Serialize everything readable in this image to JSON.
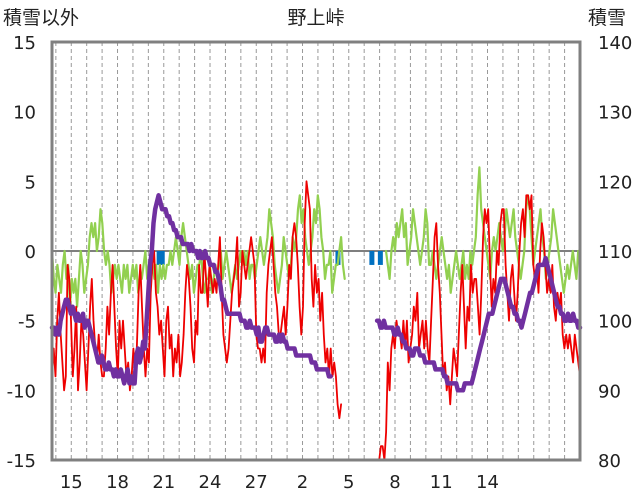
{
  "chart_data": {
    "type": "line",
    "title": "野上峠",
    "left_axis_label": "積雪以外",
    "right_axis_label": "積雪",
    "left_ylim": [
      -15,
      15
    ],
    "left_ticks": [
      "15",
      "10",
      "5",
      "0",
      "-5",
      "-10",
      "-15"
    ],
    "right_ylim": [
      80,
      140
    ],
    "right_ticks": [
      "140",
      "130",
      "120",
      "110",
      "100",
      "90",
      "80"
    ],
    "x_tick_labels": [
      "15",
      "18",
      "21",
      "24",
      "27",
      "2",
      "5",
      "8",
      "11",
      "14"
    ],
    "grid": "vertical dashed daily gridlines",
    "colors": {
      "frame": "#808080",
      "grid": "#999999",
      "zero_line": "#7f7f7f",
      "red": "#ee0000",
      "green": "#92d050",
      "purple": "#7030a0",
      "blue": "#0070c0"
    },
    "series": [
      {
        "color": "red",
        "axis": "left",
        "values": [
          -9,
          -7,
          -9,
          -5,
          -3,
          -6,
          -8,
          -10,
          -9,
          -1,
          -2,
          -5,
          -9,
          -7,
          -4,
          -10,
          -8,
          -5,
          -6,
          -8,
          -10,
          -7,
          -4,
          -2,
          -5,
          -7,
          -8,
          -6,
          -8,
          -9,
          -9,
          -7,
          -4,
          -6,
          -3,
          -1,
          -4,
          -7,
          -9,
          -5,
          -7,
          -5,
          -7,
          -9,
          -8,
          -10,
          -9,
          -7,
          -9,
          -7,
          -3,
          -1,
          -4,
          -7,
          -9,
          -7,
          -8,
          -3,
          -1,
          0,
          -3,
          -4,
          -6,
          -5,
          -7,
          -9,
          -5,
          -4,
          -7,
          -6,
          -9,
          -7,
          -8,
          -6,
          -9,
          -8,
          -6,
          -3,
          -1,
          -2,
          -4,
          -7,
          -8,
          -5,
          -6,
          -1,
          -3,
          -3,
          0,
          -2,
          -4,
          -1,
          -2,
          -3,
          -2,
          -3,
          -1,
          1,
          -3,
          -6,
          -7,
          -8,
          -7,
          -5,
          -3,
          -2,
          -1,
          1,
          -4,
          -3,
          0,
          -1,
          -2,
          -1,
          0,
          1,
          0,
          -1,
          -6,
          -7,
          -7,
          -8,
          -7,
          -8,
          -3,
          -1,
          0,
          1,
          -1,
          -3,
          -4,
          -6,
          -6,
          -5,
          -4,
          -6,
          -4,
          -1,
          -2,
          1,
          2,
          1,
          -1,
          -4,
          -6,
          -4,
          2,
          5,
          4,
          3,
          -2,
          -4,
          -1,
          -3,
          -2,
          -5,
          -3,
          -6,
          -8,
          -7,
          -9,
          -7,
          -9,
          -8,
          -9,
          -11,
          -12,
          -11,
          null,
          null,
          null,
          null,
          null,
          null,
          null,
          null,
          null,
          null,
          null,
          null,
          null,
          null,
          null,
          null,
          null,
          null,
          null,
          null,
          null,
          -15,
          -14,
          -14,
          -15,
          -13,
          -8,
          -10,
          -7,
          -6,
          -7,
          -5,
          -6,
          -6,
          -7,
          -5,
          -7,
          -5,
          -8,
          -7,
          -6,
          -4,
          -5,
          -3,
          -7,
          -6,
          -5,
          -7,
          -5,
          -7,
          -8,
          -5,
          -2,
          1,
          2,
          -1,
          -3,
          -6,
          -9,
          -8,
          -10,
          -9,
          -11,
          -9,
          -7,
          -8,
          -9,
          -6,
          -3,
          -1,
          -4,
          -7,
          -4,
          -5,
          -1,
          -3,
          -2,
          -2,
          -4,
          -6,
          -3,
          1,
          3,
          2,
          3,
          -1,
          -4,
          -2,
          -3,
          0,
          -1,
          2,
          3,
          3,
          -1,
          -3,
          -5,
          -2,
          -1,
          -3,
          -5,
          -3,
          0,
          2,
          3,
          1,
          4,
          4,
          3,
          4,
          -1,
          -2,
          -1,
          -3,
          0,
          2,
          1,
          -1,
          -3,
          -2,
          -3,
          -1,
          -4,
          -5,
          -3,
          -4,
          -3,
          -6,
          -7,
          -6,
          -7,
          -6,
          -7,
          -8,
          -6,
          -7,
          -8,
          -9
        ]
      },
      {
        "color": "green",
        "axis": "left",
        "values": [
          0,
          -2,
          -3,
          -1,
          -2,
          -3,
          -1,
          0,
          -2,
          -1,
          -4,
          -2,
          -3,
          -2,
          -4,
          -2,
          0,
          -1,
          -3,
          -2,
          -1,
          1,
          2,
          1,
          2,
          0,
          1,
          3,
          2,
          0,
          -1,
          0,
          -1,
          -3,
          -2,
          -1,
          -2,
          -1,
          -2,
          -3,
          -1,
          -2,
          -1,
          -3,
          -2,
          -1,
          -2,
          -1,
          -3,
          -2,
          -2,
          -1,
          0,
          -2,
          -1,
          -2,
          -1,
          -2,
          -1,
          -3,
          -1,
          -2,
          -1,
          -2,
          -1,
          -1,
          0,
          -1,
          0,
          1,
          0,
          -1,
          1,
          2,
          1,
          0,
          -1,
          -2,
          -1,
          -3,
          -2,
          -1,
          -1,
          0,
          -2,
          -3,
          -2,
          -2,
          -1,
          -3,
          -2,
          -1,
          -2,
          -1,
          0,
          -2,
          -1,
          0,
          -1,
          -2,
          -3,
          -2,
          -1,
          -2,
          -1,
          0,
          -1,
          0,
          -1,
          0,
          -2,
          -1,
          -1,
          -2,
          -1,
          0,
          1,
          0,
          -1,
          0,
          1,
          3,
          2,
          1,
          -1,
          -2,
          -3,
          -2,
          -1,
          1,
          0,
          -1,
          -2,
          -1,
          1,
          0,
          1,
          3,
          4,
          2,
          3,
          1,
          0,
          -1,
          0,
          1,
          3,
          2,
          4,
          3,
          1,
          0,
          -2,
          -1,
          -1,
          0,
          -3,
          -2,
          -1,
          -1,
          0,
          1,
          -1,
          -2,
          null,
          null,
          null,
          null,
          null,
          null,
          null,
          null,
          null,
          null,
          null,
          null,
          null,
          null,
          null,
          null,
          null,
          null,
          null,
          null,
          null,
          null,
          0,
          -1,
          -2,
          0,
          1,
          0,
          2,
          1,
          2,
          3,
          1,
          2,
          -1,
          0,
          1,
          3,
          2,
          1,
          0,
          -1,
          0,
          1,
          3,
          2,
          -1,
          -1,
          0,
          -1,
          -2,
          -1,
          0,
          1,
          0,
          -1,
          -2,
          -1,
          -3,
          -2,
          -1,
          0,
          -1,
          -2,
          -1,
          0,
          -2,
          -1,
          -2,
          0,
          -1,
          0,
          1,
          4,
          6,
          3,
          2,
          1,
          0,
          -1,
          -2,
          0,
          1,
          0,
          1,
          2,
          1,
          0,
          1,
          3,
          2,
          1,
          2,
          3,
          1,
          0,
          -1,
          -2,
          -1,
          0,
          3,
          4,
          3,
          1,
          -1,
          0,
          1,
          2,
          3,
          1,
          0,
          -2,
          -1,
          0,
          1,
          3,
          2,
          1,
          0,
          -1,
          -2,
          -3,
          -2,
          -1,
          -2,
          -1,
          0,
          -1,
          -2,
          0,
          -1
        ]
      },
      {
        "color": "purple",
        "axis": "right",
        "values": [
          99,
          99,
          98,
          99,
          98,
          100,
          101,
          102,
          103,
          103,
          102,
          101,
          102,
          101,
          100,
          101,
          100,
          100,
          101,
          99,
          100,
          100,
          99,
          98,
          97,
          96,
          95,
          94,
          94,
          95,
          94,
          93,
          93,
          94,
          93,
          93,
          92,
          93,
          92,
          92,
          93,
          92,
          91,
          92,
          93,
          91,
          92,
          91,
          91,
          95,
          96,
          94,
          95,
          97,
          96,
          100,
          104,
          108,
          110,
          114,
          116,
          117,
          118,
          117,
          116,
          116,
          116,
          115,
          115,
          114,
          114,
          113,
          113,
          112,
          112,
          112,
          111,
          111,
          111,
          111,
          110,
          111,
          110,
          110,
          110,
          109,
          110,
          109,
          109,
          110,
          109,
          109,
          108,
          108,
          108,
          107,
          107,
          106,
          105,
          103,
          103,
          102,
          101,
          101,
          101,
          101,
          101,
          101,
          101,
          101,
          100,
          100,
          100,
          99,
          99,
          100,
          99,
          99,
          99,
          98,
          99,
          97,
          97,
          98,
          99,
          99,
          98,
          98,
          98,
          98,
          97,
          97,
          98,
          97,
          98,
          97,
          97,
          96,
          96,
          96,
          96,
          96,
          95,
          95,
          95,
          95,
          95,
          95,
          95,
          95,
          95,
          94,
          94,
          94,
          93,
          93,
          93,
          93,
          93,
          93,
          93,
          92,
          92,
          null,
          null,
          null,
          null,
          null,
          null,
          null,
          null,
          null,
          null,
          null,
          null,
          null,
          null,
          null,
          null,
          null,
          null,
          null,
          null,
          null,
          null,
          null,
          null,
          null,
          null,
          100,
          100,
          99,
          99,
          100,
          99,
          99,
          99,
          99,
          99,
          98,
          98,
          99,
          98,
          98,
          97,
          97,
          96,
          96,
          96,
          95,
          95,
          96,
          96,
          96,
          95,
          95,
          95,
          94,
          94,
          94,
          94,
          94,
          94,
          93,
          93,
          93,
          93,
          93,
          92,
          92,
          91,
          91,
          91,
          91,
          91,
          91,
          90,
          90,
          90,
          90,
          91,
          91,
          91,
          91,
          91,
          92,
          93,
          94,
          95,
          96,
          97,
          98,
          99,
          100,
          101,
          101,
          101,
          102,
          103,
          104,
          105,
          106,
          106,
          106,
          105,
          104,
          103,
          102,
          102,
          101,
          101,
          100,
          100,
          99,
          100,
          101,
          102,
          103,
          104,
          104,
          105,
          106,
          107,
          108,
          108,
          108,
          108,
          109,
          108,
          107,
          106,
          105,
          104,
          103,
          102,
          102,
          101,
          101,
          100,
          100,
          101,
          100,
          100,
          101,
          100,
          100,
          99,
          99
        ]
      },
      {
        "color": "blue",
        "axis": "left",
        "type": "bars",
        "x_days": [
          20.7,
          20.9,
          32.3,
          34.5,
          35.05
        ],
        "values": [
          -1,
          -1,
          -1,
          -1,
          -1
        ]
      }
    ]
  }
}
